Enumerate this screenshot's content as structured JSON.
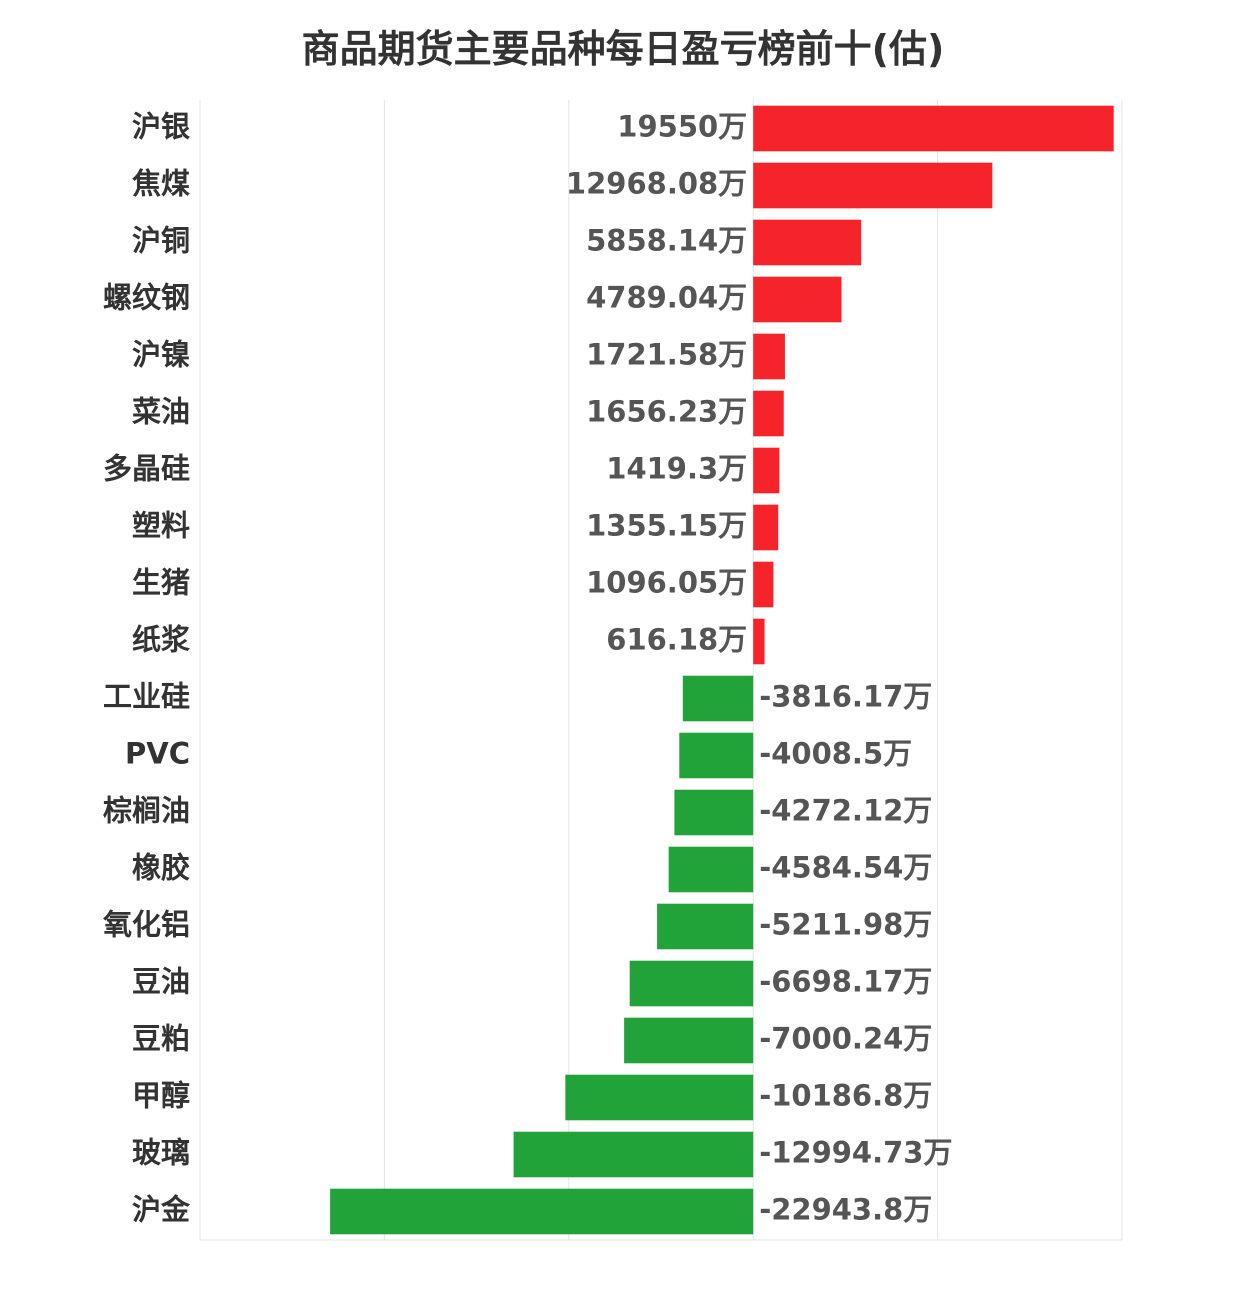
{
  "chart_data": {
    "type": "bar",
    "orientation": "horizontal",
    "title": "商品期货主要品种每日盈亏榜前十(估)",
    "unit": "万",
    "categories": [
      "沪银",
      "焦煤",
      "沪铜",
      "螺纹钢",
      "沪镍",
      "菜油",
      "多晶硅",
      "塑料",
      "生猪",
      "纸浆",
      "工业硅",
      "PVC",
      "棕榈油",
      "橡胶",
      "氧化铝",
      "豆油",
      "豆粕",
      "甲醇",
      "玻璃",
      "沪金"
    ],
    "values": [
      19550,
      12968.08,
      5858.14,
      4789.04,
      1721.58,
      1656.23,
      1419.3,
      1355.15,
      1096.05,
      616.18,
      -3816.17,
      -4008.5,
      -4272.12,
      -4584.54,
      -5211.98,
      -6698.17,
      -7000.24,
      -10186.8,
      -12994.73,
      -22943.8
    ],
    "value_labels": [
      "19550万",
      "12968.08万",
      "5858.14万",
      "4789.04万",
      "1721.58万",
      "1656.23万",
      "1419.3万",
      "1355.15万",
      "1096.05万",
      "616.18万",
      "-3816.17万",
      "-4008.5万",
      "-4272.12万",
      "-4584.54万",
      "-5211.98万",
      "-6698.17万",
      "-7000.24万",
      "-10186.8万",
      "-12994.73万",
      "-22943.8万"
    ],
    "xlim": [
      -30000,
      20000
    ],
    "grid": true,
    "colors": {
      "positive": "#f5232a",
      "negative": "#21a33a",
      "grid": "#e3e3e3"
    }
  }
}
